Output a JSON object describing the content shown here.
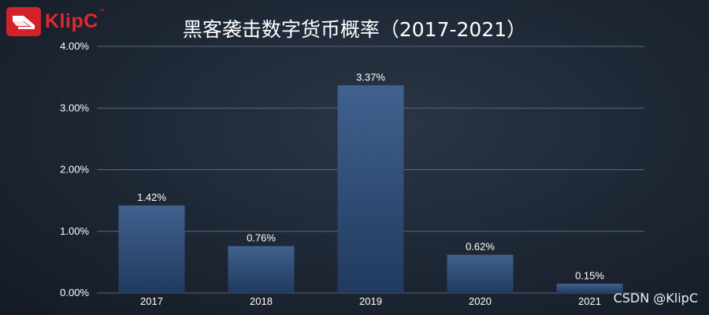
{
  "brand": {
    "logo_text": "KlipC",
    "logo_icon": "klipc-logo-icon"
  },
  "watermark": "CSDN @KlipC",
  "chart_data": {
    "type": "bar",
    "title": "黑客袭击数字货币概率（2017-2021）",
    "categories": [
      "2017",
      "2018",
      "2019",
      "2020",
      "2021"
    ],
    "values": [
      1.42,
      0.76,
      3.37,
      0.62,
      0.15
    ],
    "value_labels": [
      "1.42%",
      "0.76%",
      "3.37%",
      "0.62%",
      "0.15%"
    ],
    "y_ticks": [
      0,
      1,
      2,
      3,
      4
    ],
    "y_tick_labels": [
      "0.00%",
      "1.00%",
      "2.00%",
      "3.00%",
      "4.00%"
    ],
    "ylim": [
      0,
      4
    ],
    "xlabel": "",
    "ylabel": "",
    "grid": true,
    "colors": {
      "bar_top": "#41618f",
      "bar_bottom": "#213a5e",
      "grid": "#5a6878",
      "text": "#ffffff"
    }
  }
}
